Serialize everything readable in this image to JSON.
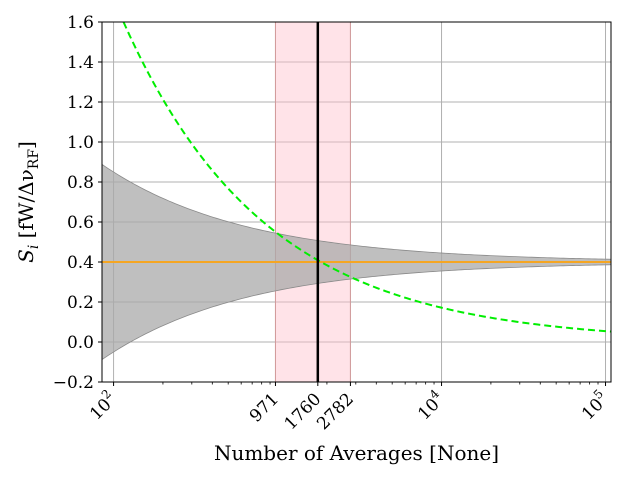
{
  "chart_data": {
    "type": "line",
    "xlabel": "Number of Averages [None]",
    "ylabel": "S_i [fW/Δν_RF]",
    "ylabel_parts": {
      "symbol": "S",
      "sub": "i",
      "unit_open": " [fW/Δν",
      "unit_sub": "RF",
      "unit_close": "]"
    },
    "x_scale": "log",
    "xlim": [
      85,
      108000
    ],
    "ylim": [
      -0.2,
      1.6
    ],
    "grid": true,
    "x_ticks": [
      {
        "value": 100,
        "base": "10",
        "exp": "2"
      },
      {
        "value": 971,
        "text": "971"
      },
      {
        "value": 1760,
        "text": "1760"
      },
      {
        "value": 2782,
        "text": "2782"
      },
      {
        "value": 10000,
        "base": "10",
        "exp": "4"
      },
      {
        "value": 100000,
        "base": "10",
        "exp": "5"
      }
    ],
    "y_ticks": [
      {
        "value": -0.2,
        "text": "−0.2"
      },
      {
        "value": 0.0,
        "text": "0.0"
      },
      {
        "value": 0.2,
        "text": "0.2"
      },
      {
        "value": 0.4,
        "text": "0.4"
      },
      {
        "value": 0.6,
        "text": "0.6"
      },
      {
        "value": 0.8,
        "text": "0.8"
      },
      {
        "value": 1.0,
        "text": "1.0"
      },
      {
        "value": 1.2,
        "text": "1.2"
      },
      {
        "value": 1.4,
        "text": "1.4"
      },
      {
        "value": 1.6,
        "text": "1.6"
      }
    ],
    "mean_line": {
      "y": 0.4,
      "color": "#f5a623"
    },
    "uncertainty_band": {
      "color": "#a9a9a9",
      "center": 0.4,
      "halfwidth_at_x100": 0.45,
      "decay_exponent": 0.5,
      "x": [
        85,
        100,
        200,
        500,
        971,
        1760,
        2782,
        5000,
        10000,
        30000,
        108000
      ],
      "lower": [
        -0.088,
        -0.05,
        0.082,
        0.199,
        0.256,
        0.293,
        0.315,
        0.336,
        0.355,
        0.374,
        0.386
      ],
      "upper": [
        0.888,
        0.85,
        0.718,
        0.601,
        0.544,
        0.507,
        0.485,
        0.464,
        0.445,
        0.426,
        0.414
      ]
    },
    "dashed_curve": {
      "color": "#00ee00",
      "x": [
        115,
        200,
        400,
        971,
        1760,
        2782,
        5000,
        10000,
        30000,
        108000
      ],
      "y": [
        1.6,
        1.216,
        0.86,
        0.552,
        0.41,
        0.326,
        0.243,
        0.172,
        0.099,
        0.052
      ]
    },
    "vertical_line": {
      "x": 1760,
      "color": "#000000"
    },
    "shaded_region": {
      "x_range": [
        971,
        2782
      ],
      "color": "#ffc0cb"
    }
  }
}
